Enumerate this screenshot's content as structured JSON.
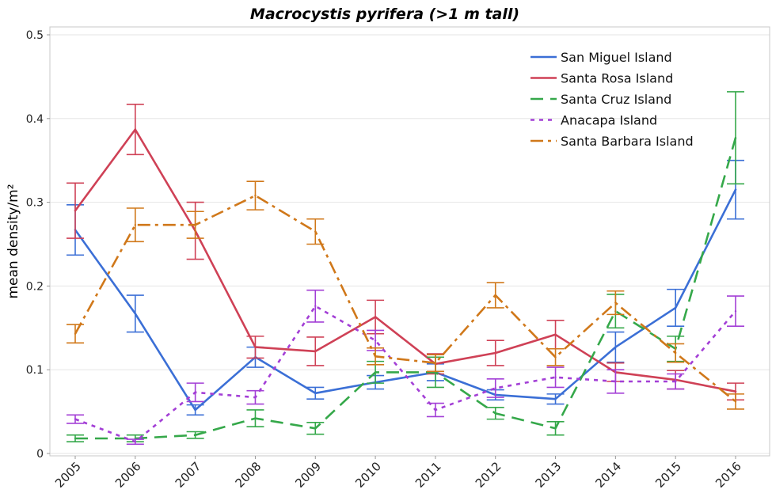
{
  "chart_data": {
    "type": "line",
    "title": "Macrocystis pyrifera (>1 m tall)",
    "xlabel": "",
    "ylabel": "mean density/m²",
    "x": [
      "2005",
      "2006",
      "2007",
      "2008",
      "2009",
      "2010",
      "2011",
      "2012",
      "2013",
      "2014",
      "2015",
      "2016"
    ],
    "ylim": [
      0,
      0.5
    ],
    "yticks": [
      "0",
      "0.1",
      "0.2",
      "0.3",
      "0.4",
      "0.5"
    ],
    "grid": true,
    "legend_position": "top-right",
    "error_bars": true,
    "series": [
      {
        "name": "San Miguel Island",
        "color": "#3b6fd6",
        "dash": "solid",
        "values": [
          0.267,
          0.167,
          0.052,
          0.115,
          0.072,
          0.085,
          0.097,
          0.07,
          0.065,
          0.127,
          0.174,
          0.315
        ],
        "err": [
          0.03,
          0.022,
          0.006,
          0.012,
          0.007,
          0.008,
          0.01,
          0.006,
          0.006,
          0.018,
          0.022,
          0.035
        ]
      },
      {
        "name": "Santa Rosa Island",
        "color": "#cf4156",
        "dash": "solid",
        "values": [
          0.29,
          0.387,
          0.266,
          0.127,
          0.122,
          0.163,
          0.107,
          0.12,
          0.142,
          0.097,
          0.088,
          0.074
        ],
        "err": [
          0.033,
          0.03,
          0.034,
          0.013,
          0.017,
          0.02,
          0.012,
          0.015,
          0.017,
          0.011,
          0.011,
          0.01
        ]
      },
      {
        "name": "Santa Cruz Island",
        "color": "#35a84a",
        "dash": "long",
        "values": [
          0.018,
          0.018,
          0.022,
          0.042,
          0.03,
          0.097,
          0.097,
          0.048,
          0.03,
          0.17,
          0.125,
          0.377
        ],
        "err": [
          0.004,
          0.004,
          0.004,
          0.01,
          0.007,
          0.013,
          0.018,
          0.007,
          0.008,
          0.02,
          0.015,
          0.055
        ]
      },
      {
        "name": "Anacapa Island",
        "color": "#a33fd6",
        "dash": "short",
        "values": [
          0.041,
          0.014,
          0.073,
          0.067,
          0.176,
          0.135,
          0.052,
          0.078,
          0.091,
          0.086,
          0.086,
          0.17
        ],
        "err": [
          0.005,
          0.003,
          0.011,
          0.008,
          0.019,
          0.012,
          0.008,
          0.011,
          0.012,
          0.014,
          0.009,
          0.018
        ]
      },
      {
        "name": "Santa Barbara Island",
        "color": "#d0781a",
        "dash": "dashdot",
        "values": [
          0.143,
          0.273,
          0.273,
          0.308,
          0.265,
          0.116,
          0.108,
          0.189,
          0.115,
          0.18,
          0.12,
          0.062
        ],
        "err": [
          0.011,
          0.02,
          0.016,
          0.017,
          0.015,
          0.01,
          0.01,
          0.015,
          0.01,
          0.014,
          0.011,
          0.009
        ]
      }
    ]
  }
}
